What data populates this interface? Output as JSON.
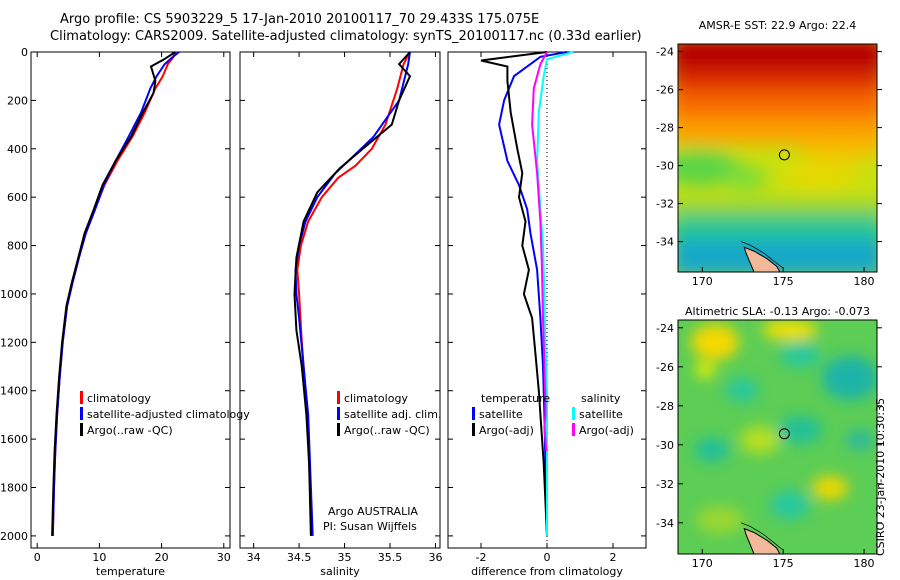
{
  "header": {
    "title_line1": "Argo profile: CS 5903229_5 17-Jan-2010 20100117_70 29.433S 175.075E",
    "title_line2": "Climatology: CARS2009. Satellite-adjusted climatology: synTS_20100117.nc (0.33d earlier)"
  },
  "credit": "CSIRO 23-Jan-2010 10:30:35",
  "colors": {
    "climatology": "#ff0000",
    "satellite": "#0000ff",
    "argo": "#000000",
    "sal_satellite": "#00ffff",
    "sal_argo": "#ff00ff"
  },
  "chart_data": [
    {
      "type": "line",
      "xlabel": "temperature",
      "ylabel": "",
      "xlim": [
        -1,
        31
      ],
      "ylim": [
        2050,
        0
      ],
      "x_ticks": [
        0,
        10,
        20,
        30
      ],
      "y_ticks": [
        0,
        200,
        400,
        600,
        800,
        1000,
        1200,
        1400,
        1600,
        1800,
        2000
      ],
      "legend": [
        "climatology",
        "satellite-adjusted climatology",
        "Argo(..raw -QC)"
      ],
      "legend_position": "lower-right",
      "series": [
        {
          "name": "climatology",
          "color": "#ff0000",
          "x": [
            22.2,
            21.8,
            21.0,
            20.2,
            19.0,
            17.3,
            15.3,
            12.9,
            10.8,
            9.3,
            7.8,
            6.7,
            5.7,
            4.8,
            4.1,
            3.6,
            3.2,
            2.9,
            2.7,
            2.5
          ],
          "y": [
            0,
            25,
            50,
            100,
            150,
            250,
            350,
            450,
            550,
            650,
            750,
            850,
            950,
            1050,
            1200,
            1350,
            1500,
            1650,
            1800,
            2000
          ]
        },
        {
          "name": "satellite-adjusted climatology",
          "color": "#0000ff",
          "x": [
            22.8,
            21.6,
            20.5,
            19.2,
            18.2,
            16.7,
            14.7,
            12.6,
            10.7,
            9.3,
            7.8,
            6.7,
            5.7,
            4.8,
            4.1,
            3.6,
            3.2,
            2.9,
            2.7,
            2.5
          ],
          "y": [
            0,
            25,
            50,
            100,
            150,
            250,
            350,
            450,
            550,
            650,
            750,
            850,
            950,
            1050,
            1200,
            1350,
            1500,
            1650,
            1800,
            2000
          ]
        },
        {
          "name": "Argo(..raw -QC)",
          "color": "#000000",
          "x": [
            22.2,
            20.4,
            18.3,
            19.0,
            18.7,
            17.0,
            15.1,
            12.6,
            10.5,
            9.1,
            7.6,
            6.6,
            5.6,
            4.7,
            4.0,
            3.5,
            3.1,
            2.8,
            2.6,
            2.4
          ],
          "y": [
            0,
            30,
            60,
            120,
            170,
            250,
            350,
            450,
            550,
            650,
            750,
            850,
            950,
            1050,
            1200,
            1350,
            1500,
            1650,
            1800,
            2000
          ]
        }
      ]
    },
    {
      "type": "line",
      "xlabel": "salinity",
      "ylabel": "",
      "xlim": [
        33.85,
        36.05
      ],
      "ylim": [
        2050,
        0
      ],
      "x_ticks": [
        34,
        34.5,
        35,
        35.5,
        36
      ],
      "legend": [
        "climatology",
        "satellite adj. clim.",
        "Argo(..raw -QC)"
      ],
      "legend_position": "lower-right",
      "annotations": [
        "Argo AUSTRALIA",
        "PI: Susan Wijffels"
      ],
      "series": [
        {
          "name": "climatology",
          "color": "#ff0000",
          "x": [
            35.72,
            35.65,
            35.58,
            35.45,
            35.3,
            35.12,
            34.93,
            34.75,
            34.6,
            34.52,
            34.48,
            34.5,
            34.53,
            34.57,
            34.6,
            34.62,
            34.63,
            34.64
          ],
          "y": [
            0,
            50,
            150,
            300,
            400,
            470,
            520,
            600,
            700,
            800,
            900,
            1000,
            1200,
            1400,
            1600,
            1800,
            1900,
            2000
          ]
        },
        {
          "name": "satellite adj. clim.",
          "color": "#0000ff",
          "x": [
            35.72,
            35.7,
            35.6,
            35.32,
            35.1,
            34.9,
            34.7,
            34.57,
            34.5,
            34.46,
            34.47,
            34.5,
            34.55,
            34.6,
            34.62,
            34.64,
            34.65
          ],
          "y": [
            0,
            50,
            200,
            350,
            430,
            500,
            600,
            700,
            800,
            900,
            1000,
            1100,
            1300,
            1500,
            1700,
            1900,
            2000
          ]
        },
        {
          "name": "Argo(..raw -QC)",
          "color": "#000000",
          "x": [
            35.72,
            35.6,
            35.72,
            35.6,
            35.52,
            35.2,
            34.95,
            34.7,
            34.55,
            34.47,
            34.45,
            34.47,
            34.53,
            34.58,
            34.61,
            34.63
          ],
          "y": [
            0,
            50,
            100,
            200,
            300,
            400,
            480,
            580,
            700,
            850,
            1000,
            1150,
            1300,
            1500,
            1700,
            2000
          ]
        }
      ]
    },
    {
      "type": "line",
      "xlabel": "difference from climatology",
      "ylabel": "",
      "xlim": [
        -3,
        3
      ],
      "ylim": [
        2050,
        0
      ],
      "x_ticks": [
        -2,
        0,
        2
      ],
      "legend": [
        "temperature",
        "satellite",
        "Argo(-adj)",
        "salinity",
        "satellite",
        "Argo(-adj)"
      ],
      "legend_position": "lower",
      "series": [
        {
          "name": "satellite",
          "group": "temperature",
          "color": "#0000ff",
          "x": [
            0.6,
            -0.2,
            -0.5,
            -1.0,
            -1.3,
            -1.45,
            -1.2,
            -0.85,
            -0.6,
            -0.5,
            -0.3,
            -0.2,
            -0.12,
            -0.08,
            -0.05,
            -0.02,
            0.0
          ],
          "y": [
            0,
            20,
            50,
            100,
            200,
            300,
            450,
            550,
            650,
            750,
            900,
            1100,
            1300,
            1500,
            1700,
            1900,
            2000
          ]
        },
        {
          "name": "Argo(-adj)",
          "group": "temperature",
          "color": "#000000",
          "x": [
            0.0,
            -2.0,
            -1.2,
            -1.2,
            -1.1,
            -0.9,
            -0.75,
            -0.85,
            -0.65,
            -0.75,
            -0.55,
            -0.7,
            -0.45,
            -0.35,
            -0.25,
            -0.1,
            0.0
          ],
          "y": [
            0,
            35,
            60,
            120,
            250,
            400,
            500,
            600,
            700,
            800,
            900,
            1000,
            1100,
            1250,
            1400,
            1700,
            2000
          ]
        },
        {
          "name": "satellite",
          "group": "salinity",
          "color": "#00ffff",
          "x": [
            0.8,
            0.0,
            -0.1,
            -0.25,
            -0.3,
            -0.2,
            -0.12,
            -0.08,
            -0.05,
            0.0,
            0.0,
            0.0
          ],
          "y": [
            0,
            30,
            100,
            250,
            450,
            650,
            800,
            1000,
            1200,
            1400,
            1700,
            2000
          ]
        },
        {
          "name": "Argo(-adj)",
          "group": "salinity",
          "color": "#ff00ff",
          "x": [
            0.0,
            -0.2,
            -0.4,
            -0.45,
            -0.3,
            -0.2,
            -0.15,
            -0.12,
            -0.08,
            -0.05,
            -0.05,
            -0.08,
            -0.05,
            -0.02
          ],
          "y": [
            0,
            50,
            150,
            300,
            500,
            700,
            900,
            1100,
            1300,
            1450,
            1500,
            1550,
            1600,
            1650
          ]
        }
      ]
    },
    {
      "type": "heatmap",
      "title": "AMSR-E SST: 22.9 Argo: 22.4",
      "xlim": [
        168.5,
        180.8
      ],
      "ylim": [
        -35.6,
        -23.6
      ],
      "x_ticks": [
        170,
        175,
        180
      ],
      "y_ticks": [
        -24,
        -26,
        -28,
        -30,
        -32,
        -34
      ],
      "marker": {
        "lon": 175.075,
        "lat": -29.433
      },
      "colormap": "jet"
    },
    {
      "type": "heatmap",
      "title": "Altimetric SLA: -0.13 Argo: -0.073",
      "xlim": [
        168.5,
        180.8
      ],
      "ylim": [
        -35.6,
        -23.6
      ],
      "x_ticks": [
        170,
        175,
        180
      ],
      "y_ticks": [
        -24,
        -26,
        -28,
        -30,
        -32,
        -34
      ],
      "marker": {
        "lon": 175.075,
        "lat": -29.433
      },
      "colormap": "jet"
    }
  ]
}
